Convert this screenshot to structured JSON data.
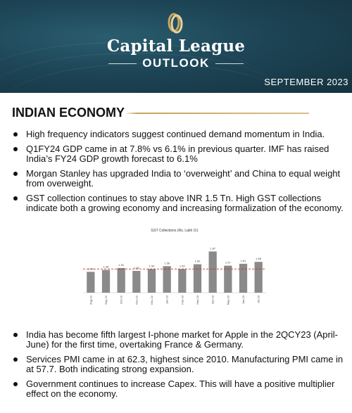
{
  "header": {
    "brand": "Capital League",
    "subtitle": "OUTLOOK",
    "date": "SEPTEMBER 2023"
  },
  "section": {
    "title": "INDIAN ECONOMY"
  },
  "bullets_top": [
    "High frequency indicators suggest continued demand momentum in India.",
    "Q1FY24 GDP came in at 7.8% vs 6.1% in previous quarter. IMF has raised India’s FY24 GDP growth forecast to 6.1%",
    "Morgan Stanley has upgraded India to ‘overweight’ and China to equal weight from overweight.",
    "GST collection continues to stay above INR 1.5 Tn. High GST collections indicate both a growing economy and increasing formalization of the economy."
  ],
  "bullets_bottom": [
    "India has become fifth largest I-phone market for Apple in the 2QCY23 (April-June) for the first time, overtaking France & Germany.",
    "Services PMI came in at 62.3, highest since 2010. Manufacturing PMI came in at 57.7. Both indicating strong expansion.",
    "Government continues to increase Capex. This will have a positive multiplier effect on the economy."
  ],
  "chart_data": {
    "type": "bar",
    "title": "GST Collections (Rs. Lakh Cr)",
    "categories": [
      "Aug-22",
      "Sep-22",
      "Oct-22",
      "Nov-22",
      "Dec-22",
      "Jan-23",
      "Feb-23",
      "Mar-23",
      "Apr-23",
      "May-23",
      "Jun-23",
      "Jul-23"
    ],
    "values": [
      1.44,
      1.48,
      1.52,
      1.46,
      1.5,
      1.56,
      1.5,
      1.6,
      1.87,
      1.57,
      1.61,
      1.65
    ],
    "reference_line": 1.5,
    "ylim": [
      1.0,
      1.95
    ],
    "colors": {
      "bar": "#8a8a8a",
      "reference": "#c0392b"
    }
  }
}
